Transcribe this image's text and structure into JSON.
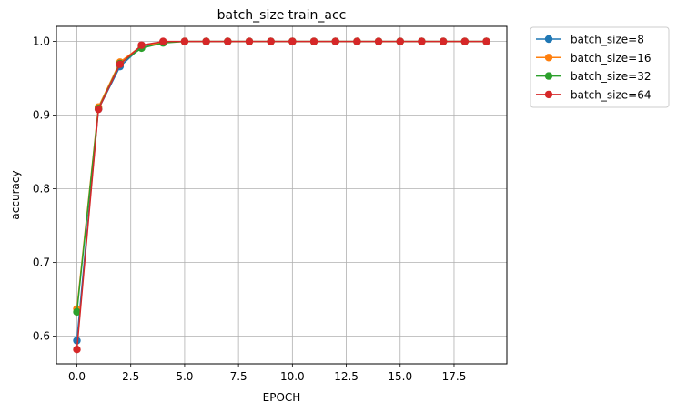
{
  "chart_data": {
    "type": "line",
    "title": "batch_size train_acc",
    "xlabel": "EPOCH",
    "ylabel": "accuracy",
    "xlim": [
      -0.95,
      19.95
    ],
    "ylim": [
      0.5625,
      1.0205
    ],
    "xticks": [
      0.0,
      2.5,
      5.0,
      7.5,
      10.0,
      12.5,
      15.0,
      17.5
    ],
    "xtick_labels": [
      "0.0",
      "2.5",
      "5.0",
      "7.5",
      "10.0",
      "12.5",
      "15.0",
      "17.5"
    ],
    "yticks": [
      0.6,
      0.7,
      0.8,
      0.9,
      1.0
    ],
    "ytick_labels": [
      "0.6",
      "0.7",
      "0.8",
      "0.9",
      "1.0"
    ],
    "grid": true,
    "legend_position": "outside-top-right",
    "x": [
      0,
      1,
      2,
      3,
      4,
      5,
      6,
      7,
      8,
      9,
      10,
      11,
      12,
      13,
      14,
      15,
      16,
      17,
      18,
      19
    ],
    "series": [
      {
        "name": "batch_size=8",
        "color": "#1f77b4",
        "values": [
          0.594,
          0.908,
          0.966,
          0.993,
          0.999,
          1.0,
          1.0,
          1.0,
          1.0,
          1.0,
          1.0,
          1.0,
          1.0,
          1.0,
          1.0,
          1.0,
          1.0,
          1.0,
          1.0,
          1.0
        ]
      },
      {
        "name": "batch_size=16",
        "color": "#ff7f0e",
        "values": [
          0.637,
          0.911,
          0.972,
          0.994,
          0.999,
          1.0,
          1.0,
          1.0,
          1.0,
          1.0,
          1.0,
          1.0,
          1.0,
          1.0,
          1.0,
          1.0,
          1.0,
          1.0,
          1.0,
          1.0
        ]
      },
      {
        "name": "batch_size=32",
        "color": "#2ca02c",
        "values": [
          0.633,
          0.909,
          0.97,
          0.991,
          0.998,
          1.0,
          1.0,
          1.0,
          1.0,
          1.0,
          1.0,
          1.0,
          1.0,
          1.0,
          1.0,
          1.0,
          1.0,
          1.0,
          1.0,
          1.0
        ]
      },
      {
        "name": "batch_size=64",
        "color": "#d62728",
        "values": [
          0.582,
          0.908,
          0.969,
          0.995,
          1.0,
          1.0,
          1.0,
          1.0,
          1.0,
          1.0,
          1.0,
          1.0,
          1.0,
          1.0,
          1.0,
          1.0,
          1.0,
          1.0,
          1.0,
          1.0
        ]
      }
    ]
  }
}
